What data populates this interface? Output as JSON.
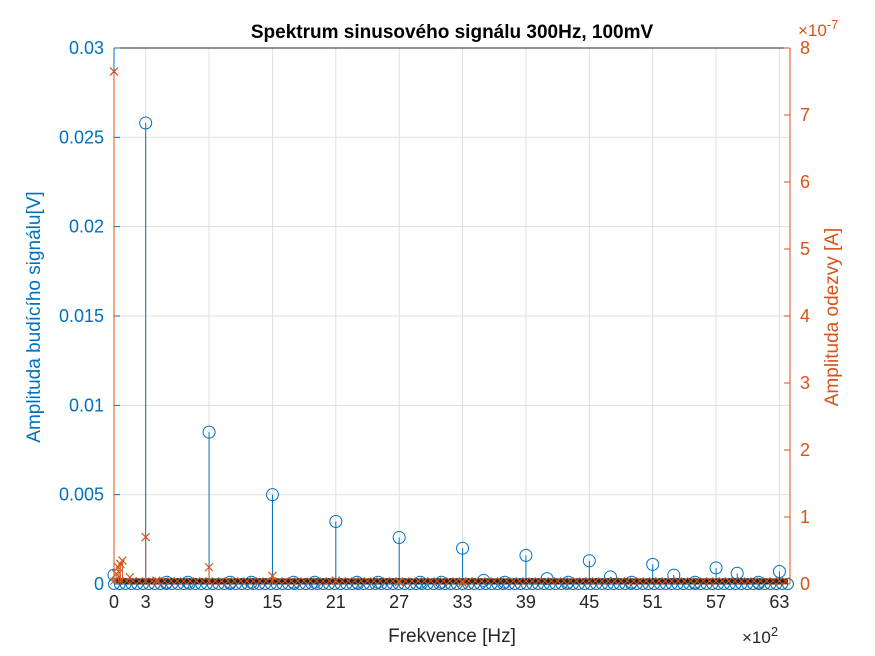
{
  "chart_data": {
    "type": "stem",
    "title": "Spektrum sinusového signálu 300Hz, 100mV",
    "xlabel": "Frekvence [Hz]",
    "ylabel_left": "Amplituda budícího signálu[V]",
    "ylabel_right": "Amplituda odezvy [A]",
    "x_exponent": "×10",
    "x_exponent_power": "2",
    "right_exponent": "×10",
    "right_exponent_power": "-7",
    "xlim": [
      0,
      64
    ],
    "xticks": [
      "0",
      "3",
      "9",
      "15",
      "21",
      "27",
      "33",
      "39",
      "45",
      "51",
      "57",
      "63"
    ],
    "ylim_left": [
      0,
      0.03
    ],
    "yticks_left": [
      "0",
      "0.005",
      "0.01",
      "0.015",
      "0.02",
      "0.025",
      "0.03"
    ],
    "ylim_right": [
      0,
      8
    ],
    "yticks_right": [
      "0",
      "1",
      "2",
      "3",
      "4",
      "5",
      "6",
      "7",
      "8"
    ],
    "grid": true,
    "colors": {
      "left": "#0072BD",
      "right": "#D95319"
    },
    "series": [
      {
        "axis": "left",
        "marker": "circle",
        "x": [
          0,
          3,
          5,
          7,
          9,
          11,
          13,
          15,
          17,
          19,
          21,
          23,
          25,
          27,
          29,
          31,
          33,
          35,
          37,
          39,
          41,
          43,
          45,
          47,
          49,
          51,
          53,
          55,
          57,
          59,
          61,
          63
        ],
        "values": [
          0.0005,
          0.0258,
          0.0001,
          0.0001,
          0.0085,
          0.0001,
          0.0001,
          0.005,
          0.0001,
          0.0001,
          0.0035,
          0.0001,
          0.0001,
          0.0026,
          0.0001,
          0.0001,
          0.002,
          0.0002,
          0.0001,
          0.0016,
          0.0003,
          0.0001,
          0.0013,
          0.0004,
          0.0001,
          0.0011,
          0.0005,
          0.0001,
          0.0009,
          0.0006,
          0.0001,
          0.0007
        ]
      },
      {
        "axis": "right",
        "marker": "x",
        "x": [
          0,
          0.2,
          0.4,
          0.6,
          0.8,
          1.5,
          3,
          4,
          9,
          15,
          21,
          27,
          33
        ],
        "values": [
          7.65,
          0.15,
          0.25,
          0.3,
          0.35,
          0.1,
          0.7,
          0.05,
          0.25,
          0.12,
          0.05,
          0.03,
          0.02
        ]
      }
    ]
  }
}
